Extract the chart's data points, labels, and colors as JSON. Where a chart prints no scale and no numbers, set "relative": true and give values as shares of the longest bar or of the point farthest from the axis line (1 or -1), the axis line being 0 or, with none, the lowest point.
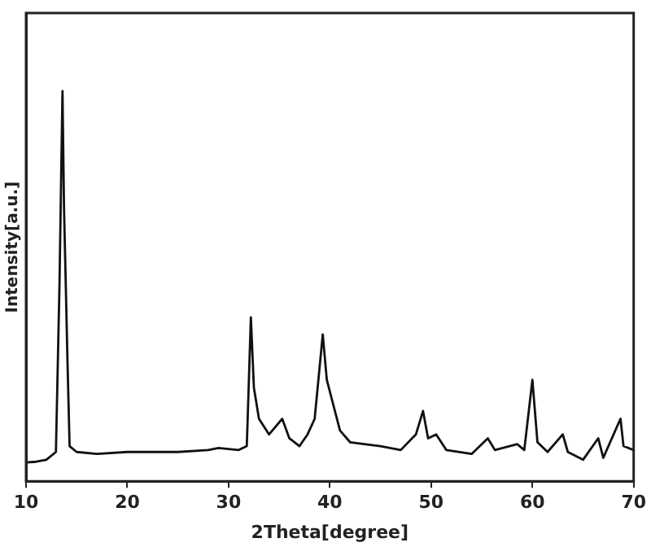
{
  "chart_data": {
    "type": "line",
    "xlabel": "2Theta[degree]",
    "ylabel": "Intensity[a.u.]",
    "relative": true,
    "xlim": [
      10,
      70
    ],
    "xticks": [
      10,
      20,
      30,
      40,
      50,
      60,
      70
    ],
    "grid": false,
    "legend": false,
    "marker": "none",
    "line_style": "solid",
    "series": [
      {
        "color": "#111111",
        "x": [
          10,
          11,
          12,
          12.95,
          13.3,
          13.6,
          13.75,
          13.9,
          14.1,
          14.3,
          15,
          17,
          20,
          25,
          28,
          29,
          31,
          31.8,
          32.2,
          32.5,
          33,
          34,
          35.3,
          36,
          37,
          37.8,
          38.5,
          39.3,
          39.7,
          41,
          42,
          45,
          47,
          48.5,
          49.2,
          49.7,
          50.5,
          51.5,
          54,
          55.6,
          56.3,
          58.5,
          59.2,
          60,
          60.5,
          61.5,
          63,
          63.5,
          65,
          66.5,
          67,
          68.7,
          69,
          70
        ],
        "values": [
          0.048,
          0.05,
          0.055,
          0.075,
          0.5,
          1,
          0.7,
          0.53,
          0.3,
          0.09,
          0.075,
          0.07,
          0.075,
          0.075,
          0.08,
          0.085,
          0.08,
          0.09,
          0.42,
          0.24,
          0.16,
          0.12,
          0.16,
          0.11,
          0.09,
          0.12,
          0.16,
          0.376,
          0.26,
          0.13,
          0.1,
          0.09,
          0.08,
          0.12,
          0.18,
          0.11,
          0.12,
          0.08,
          0.07,
          0.11,
          0.08,
          0.095,
          0.08,
          0.26,
          0.1,
          0.075,
          0.12,
          0.075,
          0.055,
          0.11,
          0.06,
          0.16,
          0.09,
          0.08
        ]
      }
    ]
  }
}
